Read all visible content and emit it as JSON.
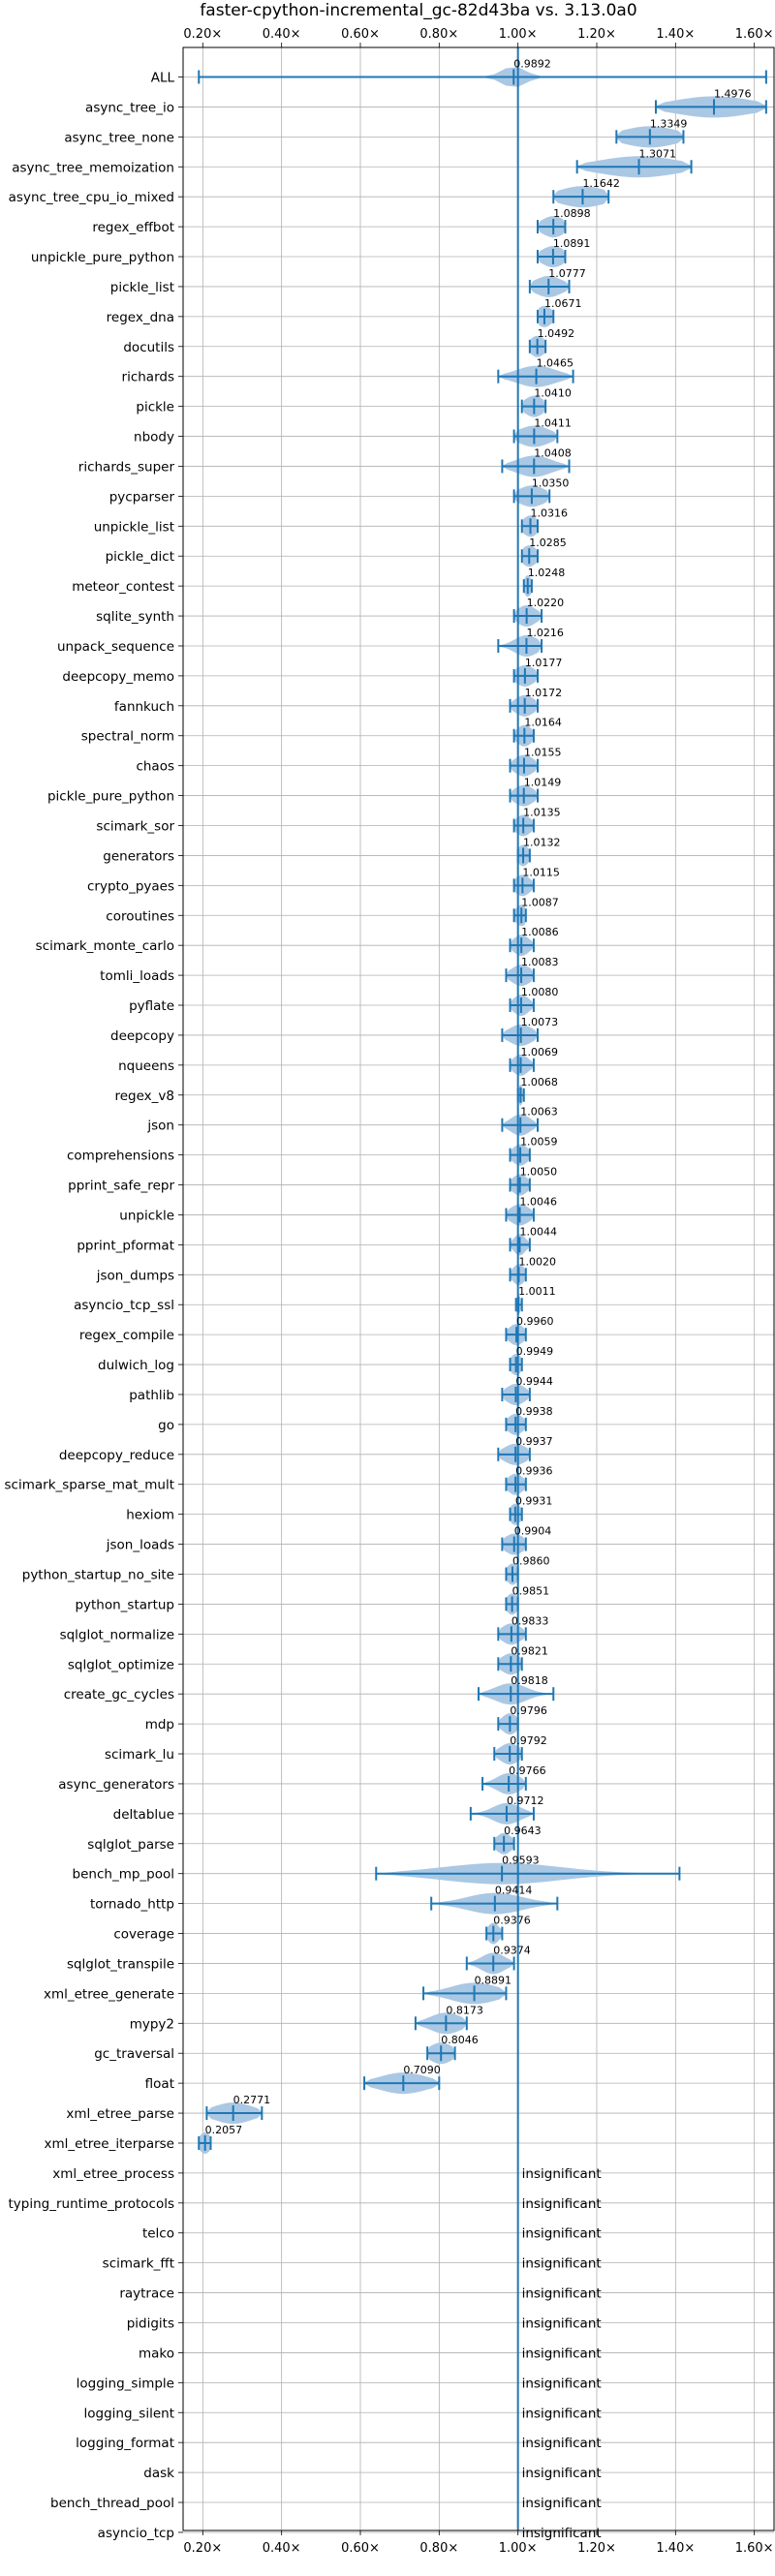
{
  "chart_data": {
    "type": "violin",
    "title": "faster-cpython-incremental_gc-82d43ba vs. 3.13.0a0",
    "xlabel": "",
    "ylabel": "",
    "xlim": [
      0.15,
      1.65
    ],
    "reference_line": 1.0,
    "x_ticks": [
      0.2,
      0.4,
      0.6,
      0.8,
      1.0,
      1.2,
      1.4,
      1.6
    ],
    "x_tick_labels": [
      "0.20×",
      "0.40×",
      "0.60×",
      "0.80×",
      "1.00×",
      "1.20×",
      "1.40×",
      "1.60×"
    ],
    "grid": true,
    "colors": {
      "violin": "#aac8e4",
      "line": "#1f77b4",
      "grid": "#b0b0b0"
    },
    "insignificant_label": "insignificant",
    "benchmarks": [
      {
        "name": "ALL",
        "value": 0.9892,
        "label": "0.9892",
        "lo": 0.19,
        "hi": 1.63,
        "spread": 0.03
      },
      {
        "name": "async_tree_io",
        "value": 1.4976,
        "label": "1.4976",
        "lo": 1.35,
        "hi": 1.63,
        "spread": 0.1
      },
      {
        "name": "async_tree_none",
        "value": 1.3349,
        "label": "1.3349",
        "lo": 1.25,
        "hi": 1.42,
        "spread": 0.07
      },
      {
        "name": "async_tree_memoization",
        "value": 1.3071,
        "label": "1.3071",
        "lo": 1.15,
        "hi": 1.44,
        "spread": 0.1
      },
      {
        "name": "async_tree_cpu_io_mixed",
        "value": 1.1642,
        "label": "1.1642",
        "lo": 1.09,
        "hi": 1.23,
        "spread": 0.06
      },
      {
        "name": "regex_effbot",
        "value": 1.0898,
        "label": "1.0898",
        "lo": 1.05,
        "hi": 1.12,
        "spread": 0.03
      },
      {
        "name": "unpickle_pure_python",
        "value": 1.0891,
        "label": "1.0891",
        "lo": 1.05,
        "hi": 1.12,
        "spread": 0.03
      },
      {
        "name": "pickle_list",
        "value": 1.0777,
        "label": "1.0777",
        "lo": 1.03,
        "hi": 1.13,
        "spread": 0.035
      },
      {
        "name": "regex_dna",
        "value": 1.0671,
        "label": "1.0671",
        "lo": 1.05,
        "hi": 1.09,
        "spread": 0.02
      },
      {
        "name": "docutils",
        "value": 1.0492,
        "label": "1.0492",
        "lo": 1.03,
        "hi": 1.07,
        "spread": 0.02
      },
      {
        "name": "richards",
        "value": 1.0465,
        "label": "1.0465",
        "lo": 0.95,
        "hi": 1.14,
        "spread": 0.05
      },
      {
        "name": "pickle",
        "value": 1.041,
        "label": "1.0410",
        "lo": 1.01,
        "hi": 1.07,
        "spread": 0.025
      },
      {
        "name": "nbody",
        "value": 1.0411,
        "label": "1.0411",
        "lo": 0.99,
        "hi": 1.1,
        "spread": 0.04
      },
      {
        "name": "richards_super",
        "value": 1.0408,
        "label": "1.0408",
        "lo": 0.96,
        "hi": 1.13,
        "spread": 0.045
      },
      {
        "name": "pycparser",
        "value": 1.035,
        "label": "1.0350",
        "lo": 0.99,
        "hi": 1.08,
        "spread": 0.035
      },
      {
        "name": "unpickle_list",
        "value": 1.0316,
        "label": "1.0316",
        "lo": 1.01,
        "hi": 1.05,
        "spread": 0.02
      },
      {
        "name": "pickle_dict",
        "value": 1.0285,
        "label": "1.0285",
        "lo": 1.01,
        "hi": 1.05,
        "spread": 0.02
      },
      {
        "name": "meteor_contest",
        "value": 1.0248,
        "label": "1.0248",
        "lo": 1.015,
        "hi": 1.035,
        "spread": 0.01
      },
      {
        "name": "sqlite_synth",
        "value": 1.022,
        "label": "1.0220",
        "lo": 0.99,
        "hi": 1.06,
        "spread": 0.025
      },
      {
        "name": "unpack_sequence",
        "value": 1.0216,
        "label": "1.0216",
        "lo": 0.95,
        "hi": 1.06,
        "spread": 0.03
      },
      {
        "name": "deepcopy_memo",
        "value": 1.0177,
        "label": "1.0177",
        "lo": 0.99,
        "hi": 1.05,
        "spread": 0.025
      },
      {
        "name": "fannkuch",
        "value": 1.0172,
        "label": "1.0172",
        "lo": 0.98,
        "hi": 1.05,
        "spread": 0.025
      },
      {
        "name": "spectral_norm",
        "value": 1.0164,
        "label": "1.0164",
        "lo": 0.99,
        "hi": 1.04,
        "spread": 0.02
      },
      {
        "name": "chaos",
        "value": 1.0155,
        "label": "1.0155",
        "lo": 0.98,
        "hi": 1.05,
        "spread": 0.025
      },
      {
        "name": "pickle_pure_python",
        "value": 1.0149,
        "label": "1.0149",
        "lo": 0.98,
        "hi": 1.05,
        "spread": 0.025
      },
      {
        "name": "scimark_sor",
        "value": 1.0135,
        "label": "1.0135",
        "lo": 0.99,
        "hi": 1.04,
        "spread": 0.02
      },
      {
        "name": "generators",
        "value": 1.0132,
        "label": "1.0132",
        "lo": 1.0,
        "hi": 1.03,
        "spread": 0.015
      },
      {
        "name": "crypto_pyaes",
        "value": 1.0115,
        "label": "1.0115",
        "lo": 0.99,
        "hi": 1.04,
        "spread": 0.02
      },
      {
        "name": "coroutines",
        "value": 1.0087,
        "label": "1.0087",
        "lo": 0.99,
        "hi": 1.02,
        "spread": 0.015
      },
      {
        "name": "scimark_monte_carlo",
        "value": 1.0086,
        "label": "1.0086",
        "lo": 0.98,
        "hi": 1.04,
        "spread": 0.02
      },
      {
        "name": "tomli_loads",
        "value": 1.0083,
        "label": "1.0083",
        "lo": 0.97,
        "hi": 1.04,
        "spread": 0.025
      },
      {
        "name": "pyflate",
        "value": 1.008,
        "label": "1.0080",
        "lo": 0.98,
        "hi": 1.04,
        "spread": 0.02
      },
      {
        "name": "deepcopy",
        "value": 1.0073,
        "label": "1.0073",
        "lo": 0.96,
        "hi": 1.05,
        "spread": 0.03
      },
      {
        "name": "nqueens",
        "value": 1.0069,
        "label": "1.0069",
        "lo": 0.98,
        "hi": 1.04,
        "spread": 0.02
      },
      {
        "name": "regex_v8",
        "value": 1.0068,
        "label": "1.0068",
        "lo": 1.0,
        "hi": 1.015,
        "spread": 0.005
      },
      {
        "name": "json",
        "value": 1.0063,
        "label": "1.0063",
        "lo": 0.96,
        "hi": 1.05,
        "spread": 0.025
      },
      {
        "name": "comprehensions",
        "value": 1.0059,
        "label": "1.0059",
        "lo": 0.98,
        "hi": 1.03,
        "spread": 0.02
      },
      {
        "name": "pprint_safe_repr",
        "value": 1.005,
        "label": "1.0050",
        "lo": 0.98,
        "hi": 1.03,
        "spread": 0.02
      },
      {
        "name": "unpickle",
        "value": 1.0046,
        "label": "1.0046",
        "lo": 0.97,
        "hi": 1.04,
        "spread": 0.025
      },
      {
        "name": "pprint_pformat",
        "value": 1.0044,
        "label": "1.0044",
        "lo": 0.98,
        "hi": 1.03,
        "spread": 0.015
      },
      {
        "name": "json_dumps",
        "value": 1.002,
        "label": "1.0020",
        "lo": 0.98,
        "hi": 1.02,
        "spread": 0.015
      },
      {
        "name": "asyncio_tcp_ssl",
        "value": 1.0011,
        "label": "1.0011",
        "lo": 0.995,
        "hi": 1.01,
        "spread": 0.005
      },
      {
        "name": "regex_compile",
        "value": 0.996,
        "label": "0.9960",
        "lo": 0.97,
        "hi": 1.02,
        "spread": 0.02
      },
      {
        "name": "dulwich_log",
        "value": 0.9949,
        "label": "0.9949",
        "lo": 0.98,
        "hi": 1.01,
        "spread": 0.015
      },
      {
        "name": "pathlib",
        "value": 0.9944,
        "label": "0.9944",
        "lo": 0.96,
        "hi": 1.03,
        "spread": 0.025
      },
      {
        "name": "go",
        "value": 0.9938,
        "label": "0.9938",
        "lo": 0.97,
        "hi": 1.02,
        "spread": 0.02
      },
      {
        "name": "deepcopy_reduce",
        "value": 0.9937,
        "label": "0.9937",
        "lo": 0.95,
        "hi": 1.03,
        "spread": 0.03
      },
      {
        "name": "scimark_sparse_mat_mult",
        "value": 0.9936,
        "label": "0.9936",
        "lo": 0.97,
        "hi": 1.02,
        "spread": 0.02
      },
      {
        "name": "hexiom",
        "value": 0.9931,
        "label": "0.9931",
        "lo": 0.98,
        "hi": 1.01,
        "spread": 0.015
      },
      {
        "name": "json_loads",
        "value": 0.9904,
        "label": "0.9904",
        "lo": 0.96,
        "hi": 1.02,
        "spread": 0.025
      },
      {
        "name": "python_startup_no_site",
        "value": 0.986,
        "label": "0.9860",
        "lo": 0.97,
        "hi": 1.0,
        "spread": 0.015
      },
      {
        "name": "python_startup",
        "value": 0.9851,
        "label": "0.9851",
        "lo": 0.97,
        "hi": 1.0,
        "spread": 0.015
      },
      {
        "name": "sqlglot_normalize",
        "value": 0.9833,
        "label": "0.9833",
        "lo": 0.95,
        "hi": 1.02,
        "spread": 0.025
      },
      {
        "name": "sqlglot_optimize",
        "value": 0.9821,
        "label": "0.9821",
        "lo": 0.95,
        "hi": 1.01,
        "spread": 0.025
      },
      {
        "name": "create_gc_cycles",
        "value": 0.9818,
        "label": "0.9818",
        "lo": 0.9,
        "hi": 1.09,
        "spread": 0.04
      },
      {
        "name": "mdp",
        "value": 0.9796,
        "label": "0.9796",
        "lo": 0.95,
        "hi": 1.0,
        "spread": 0.02
      },
      {
        "name": "scimark_lu",
        "value": 0.9792,
        "label": "0.9792",
        "lo": 0.94,
        "hi": 1.01,
        "spread": 0.025
      },
      {
        "name": "async_generators",
        "value": 0.9766,
        "label": "0.9766",
        "lo": 0.91,
        "hi": 1.02,
        "spread": 0.03
      },
      {
        "name": "deltablue",
        "value": 0.9712,
        "label": "0.9712",
        "lo": 0.88,
        "hi": 1.04,
        "spread": 0.035
      },
      {
        "name": "sqlglot_parse",
        "value": 0.9643,
        "label": "0.9643",
        "lo": 0.94,
        "hi": 0.99,
        "spread": 0.02
      },
      {
        "name": "bench_mp_pool",
        "value": 0.9593,
        "label": "0.9593",
        "lo": 0.64,
        "hi": 1.41,
        "spread": 0.15
      },
      {
        "name": "tornado_http",
        "value": 0.9414,
        "label": "0.9414",
        "lo": 0.78,
        "hi": 1.1,
        "spread": 0.07
      },
      {
        "name": "coverage",
        "value": 0.9376,
        "label": "0.9376",
        "lo": 0.92,
        "hi": 0.96,
        "spread": 0.015
      },
      {
        "name": "sqlglot_transpile",
        "value": 0.9374,
        "label": "0.9374",
        "lo": 0.87,
        "hi": 0.99,
        "spread": 0.03
      },
      {
        "name": "xml_etree_generate",
        "value": 0.8891,
        "label": "0.8891",
        "lo": 0.76,
        "hi": 0.97,
        "spread": 0.06
      },
      {
        "name": "mypy2",
        "value": 0.8173,
        "label": "0.8173",
        "lo": 0.74,
        "hi": 0.87,
        "spread": 0.04
      },
      {
        "name": "gc_traversal",
        "value": 0.8046,
        "label": "0.8046",
        "lo": 0.77,
        "hi": 0.84,
        "spread": 0.03
      },
      {
        "name": "float",
        "value": 0.709,
        "label": "0.7090",
        "lo": 0.61,
        "hi": 0.8,
        "spread": 0.06
      },
      {
        "name": "xml_etree_parse",
        "value": 0.2771,
        "label": "0.2771",
        "lo": 0.21,
        "hi": 0.35,
        "spread": 0.05
      },
      {
        "name": "xml_etree_iterparse",
        "value": 0.2057,
        "label": "0.2057",
        "lo": 0.19,
        "hi": 0.22,
        "spread": 0.015
      },
      {
        "name": "xml_etree_process",
        "insignificant": true
      },
      {
        "name": "typing_runtime_protocols",
        "insignificant": true
      },
      {
        "name": "telco",
        "insignificant": true
      },
      {
        "name": "scimark_fft",
        "insignificant": true
      },
      {
        "name": "raytrace",
        "insignificant": true
      },
      {
        "name": "pidigits",
        "insignificant": true
      },
      {
        "name": "mako",
        "insignificant": true
      },
      {
        "name": "logging_simple",
        "insignificant": true
      },
      {
        "name": "logging_silent",
        "insignificant": true
      },
      {
        "name": "logging_format",
        "insignificant": true
      },
      {
        "name": "dask",
        "insignificant": true
      },
      {
        "name": "bench_thread_pool",
        "insignificant": true
      },
      {
        "name": "asyncio_tcp",
        "insignificant": true
      }
    ]
  }
}
